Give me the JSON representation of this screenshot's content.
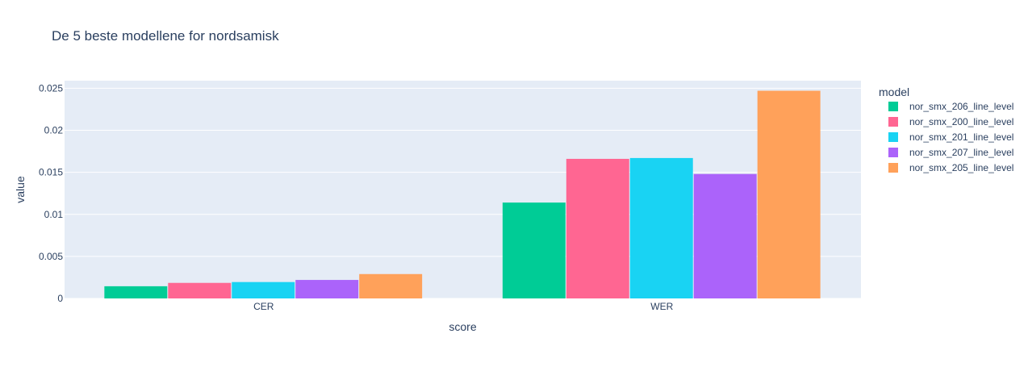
{
  "chart_data": {
    "type": "bar",
    "title": "De 5 beste modellene for nordsamisk",
    "xlabel": "score",
    "ylabel": "value",
    "categories": [
      "CER",
      "WER"
    ],
    "ylim": [
      0,
      0.0259
    ],
    "yticks": [
      0,
      0.005,
      0.01,
      0.015,
      0.02,
      0.025
    ],
    "ytick_labels": [
      "0",
      "0.005",
      "0.01",
      "0.015",
      "0.02",
      "0.025"
    ],
    "grid": true,
    "legend": {
      "title": "model",
      "position": "right"
    },
    "series": [
      {
        "name": "nor_smx_206_line_level",
        "color": "#00CC96",
        "values": [
          0.00145,
          0.0114
        ]
      },
      {
        "name": "nor_smx_200_line_level",
        "color": "#FF6692",
        "values": [
          0.00185,
          0.0166
        ]
      },
      {
        "name": "nor_smx_201_line_level",
        "color": "#19D3F3",
        "values": [
          0.00195,
          0.0167
        ]
      },
      {
        "name": "nor_smx_207_line_level",
        "color": "#AB63FA",
        "values": [
          0.0022,
          0.0148
        ]
      },
      {
        "name": "nor_smx_205_line_level",
        "color": "#FFA15A",
        "values": [
          0.0029,
          0.0247
        ]
      }
    ],
    "colors": {
      "plot_bg": "#E5ECF6",
      "grid": "#FFFFFF",
      "text": "#2a3f5f"
    }
  }
}
